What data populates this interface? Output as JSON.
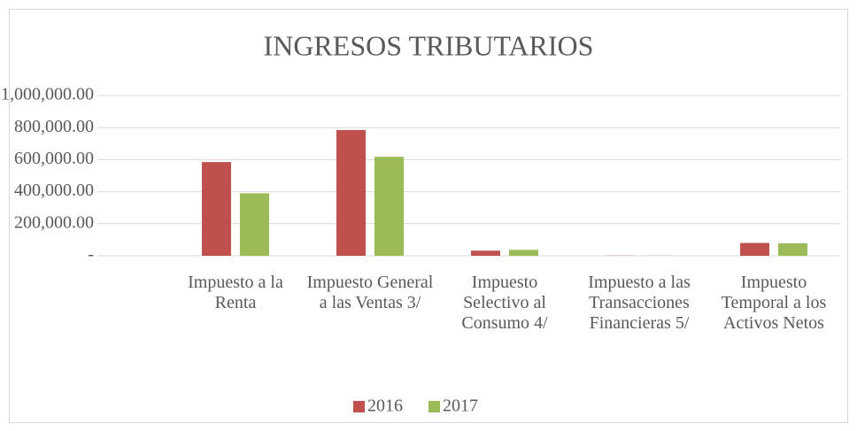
{
  "chart_data": {
    "type": "bar",
    "title": "INGRESOS TRIBUTARIOS",
    "categories": [
      "Impuesto a la Renta",
      "Impuesto General a las Ventas 3/",
      "Impuesto Selectivo al Consumo 4/",
      "Impuesto a las Transacciones Financieras 5/",
      "Impuesto Temporal a los Activos Netos"
    ],
    "series": [
      {
        "name": "2016",
        "color": "#c0504d",
        "values": [
          585000,
          785000,
          32000,
          1000,
          80000
        ]
      },
      {
        "name": "2017",
        "color": "#9bbb59",
        "values": [
          390000,
          618000,
          37000,
          1000,
          78000
        ]
      }
    ],
    "ylim": [
      0,
      1000000
    ],
    "yticks": [
      {
        "value": 0,
        "label": "-"
      },
      {
        "value": 200000,
        "label": "200,000.00"
      },
      {
        "value": 400000,
        "label": "400,000.00"
      },
      {
        "value": 600000,
        "label": "600,000.00"
      },
      {
        "value": 800000,
        "label": "800,000.00"
      },
      {
        "value": 1000000,
        "label": "1,000,000.00"
      }
    ],
    "grid": true,
    "legend": "bottom"
  }
}
